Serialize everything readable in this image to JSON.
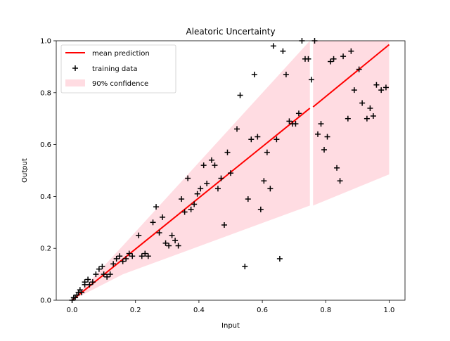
{
  "chart_data": {
    "type": "scatter",
    "title": "Aleatoric Uncertainty",
    "xlabel": "Input",
    "ylabel": "Output",
    "xlim": [
      -0.05,
      1.05
    ],
    "ylim": [
      0.0,
      1.0
    ],
    "xticks": [
      "0.0",
      "0.2",
      "0.4",
      "0.6",
      "0.8",
      "1.0"
    ],
    "yticks": [
      "0.0",
      "0.2",
      "0.4",
      "0.6",
      "0.8",
      "1.0"
    ],
    "grid": false,
    "legend_placement": "upper-left",
    "legend": {
      "mean": "mean prediction",
      "training": "training data",
      "confidence": "90% confidence"
    },
    "colors": {
      "mean_line": "#ff0000",
      "confidence_band": "#ffc0cb",
      "training_marker": "#000000"
    },
    "mean_prediction": {
      "segments": [
        {
          "x": [
            0.0,
            0.75
          ],
          "y": [
            0.0,
            0.74
          ]
        },
        {
          "x": [
            0.76,
            1.0
          ],
          "y": [
            0.745,
            0.985
          ]
        }
      ]
    },
    "confidence_band": {
      "segments": [
        {
          "x": [
            0.0,
            0.16,
            0.75
          ],
          "upper": [
            0.0,
            0.21,
            1.0
          ],
          "lower": [
            0.0,
            0.1,
            0.365
          ]
        },
        {
          "x": [
            0.76,
            1.0
          ],
          "upper": [
            1.0,
            1.0
          ],
          "lower": [
            0.365,
            0.485
          ]
        }
      ]
    },
    "training_data": {
      "x": [
        0.0,
        0.005,
        0.01,
        0.015,
        0.02,
        0.025,
        0.03,
        0.04,
        0.04,
        0.05,
        0.055,
        0.065,
        0.075,
        0.085,
        0.095,
        0.1,
        0.11,
        0.12,
        0.13,
        0.14,
        0.15,
        0.16,
        0.17,
        0.18,
        0.19,
        0.21,
        0.22,
        0.23,
        0.24,
        0.255,
        0.265,
        0.275,
        0.285,
        0.295,
        0.305,
        0.315,
        0.325,
        0.335,
        0.345,
        0.355,
        0.365,
        0.375,
        0.385,
        0.395,
        0.405,
        0.415,
        0.425,
        0.44,
        0.45,
        0.46,
        0.47,
        0.48,
        0.49,
        0.5,
        0.52,
        0.53,
        0.545,
        0.555,
        0.565,
        0.575,
        0.585,
        0.595,
        0.605,
        0.615,
        0.625,
        0.635,
        0.645,
        0.655,
        0.665,
        0.675,
        0.685,
        0.695,
        0.705,
        0.715,
        0.725,
        0.735,
        0.745,
        0.755,
        0.765,
        0.775,
        0.785,
        0.795,
        0.805,
        0.815,
        0.825,
        0.835,
        0.845,
        0.855,
        0.87,
        0.88,
        0.89,
        0.905,
        0.915,
        0.93,
        0.94,
        0.95,
        0.96,
        0.975,
        0.99
      ],
      "y": [
        0.0,
        0.01,
        0.01,
        0.02,
        0.03,
        0.04,
        0.03,
        0.06,
        0.07,
        0.08,
        0.06,
        0.07,
        0.1,
        0.12,
        0.13,
        0.1,
        0.09,
        0.1,
        0.14,
        0.16,
        0.17,
        0.15,
        0.16,
        0.18,
        0.17,
        0.25,
        0.17,
        0.18,
        0.17,
        0.3,
        0.36,
        0.26,
        0.32,
        0.22,
        0.21,
        0.25,
        0.23,
        0.21,
        0.39,
        0.34,
        0.47,
        0.35,
        0.37,
        0.41,
        0.43,
        0.52,
        0.45,
        0.54,
        0.52,
        0.43,
        0.47,
        0.29,
        0.57,
        0.49,
        0.66,
        0.79,
        0.13,
        0.39,
        0.62,
        0.87,
        0.63,
        0.35,
        0.46,
        0.57,
        0.43,
        0.98,
        0.62,
        0.16,
        0.96,
        0.87,
        0.69,
        0.68,
        0.68,
        0.72,
        1.0,
        0.93,
        0.93,
        0.85,
        1.0,
        0.64,
        0.68,
        0.58,
        0.63,
        0.92,
        0.93,
        0.51,
        0.46,
        0.94,
        0.7,
        0.96,
        0.81,
        0.89,
        0.76,
        0.7,
        0.74,
        0.71,
        0.83,
        0.81,
        0.82
      ]
    }
  }
}
